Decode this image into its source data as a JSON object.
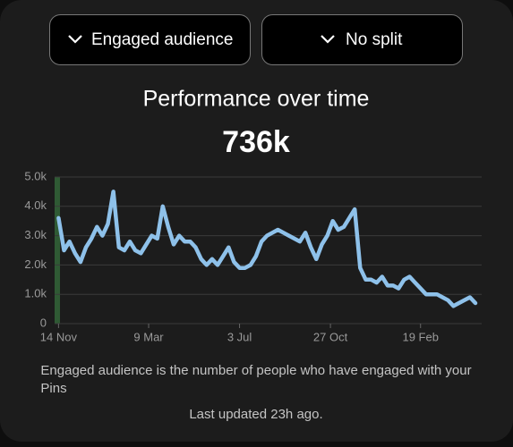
{
  "controls": [
    {
      "label": "Engaged audience"
    },
    {
      "label": "No split"
    }
  ],
  "chart_data": {
    "type": "line",
    "title": "Performance over time",
    "subtitle": "736k",
    "x": [
      0,
      7,
      14,
      21,
      28,
      35,
      42,
      49,
      56,
      63,
      70,
      77,
      84,
      91,
      98,
      105,
      112,
      119,
      126,
      133,
      140,
      147,
      154,
      161,
      168,
      175,
      182,
      189,
      196,
      203,
      210,
      217,
      224,
      231,
      238,
      245,
      252,
      259,
      266,
      273,
      280,
      287,
      294,
      301,
      308,
      315,
      322,
      329,
      336,
      343,
      350,
      357,
      364,
      371,
      378,
      385,
      392,
      399,
      406,
      413,
      420,
      427,
      434,
      441,
      448,
      455,
      462,
      469,
      476,
      483,
      490,
      497,
      504,
      511,
      518,
      525,
      532
    ],
    "series": [
      {
        "name": "Engaged audience",
        "color": "#8ec1ea",
        "values": [
          3600,
          2500,
          2800,
          2400,
          2100,
          2600,
          2900,
          3300,
          3000,
          3400,
          4500,
          2600,
          2500,
          2800,
          2500,
          2400,
          2700,
          3000,
          2900,
          4000,
          3300,
          2700,
          3000,
          2800,
          2800,
          2600,
          2200,
          2000,
          2200,
          2000,
          2300,
          2600,
          2100,
          1900,
          1900,
          2000,
          2300,
          2800,
          3000,
          3100,
          3200,
          3100,
          3000,
          2900,
          2800,
          3100,
          2600,
          2200,
          2700,
          3000,
          3500,
          3200,
          3300,
          3600,
          3900,
          1900,
          1500,
          1500,
          1400,
          1600,
          1300,
          1300,
          1200,
          1500,
          1600,
          1400,
          1200,
          1000,
          1000,
          1000,
          900,
          800,
          600,
          700,
          800,
          900,
          700
        ]
      }
    ],
    "xlim": [
      -5,
      540
    ],
    "xticks": [
      {
        "value": 0,
        "label": "14 Nov"
      },
      {
        "value": 115,
        "label": "9 Mar"
      },
      {
        "value": 231,
        "label": "3 Jul"
      },
      {
        "value": 347,
        "label": "27 Oct"
      },
      {
        "value": 462,
        "label": "19 Feb"
      }
    ],
    "ylim": [
      0,
      5000
    ],
    "yticks": [
      0,
      {
        "value": 1000,
        "label": "1.0k"
      },
      {
        "value": 2000,
        "label": "2.0k"
      },
      {
        "value": 3000,
        "label": "3.0k"
      },
      {
        "value": 4000,
        "label": "4.0k"
      },
      {
        "value": 5000,
        "label": "5.0k"
      }
    ],
    "grid": true
  },
  "footer": {
    "description": "Engaged audience is the number of people who have engaged with your Pins",
    "updated": "Last updated 23h ago."
  }
}
